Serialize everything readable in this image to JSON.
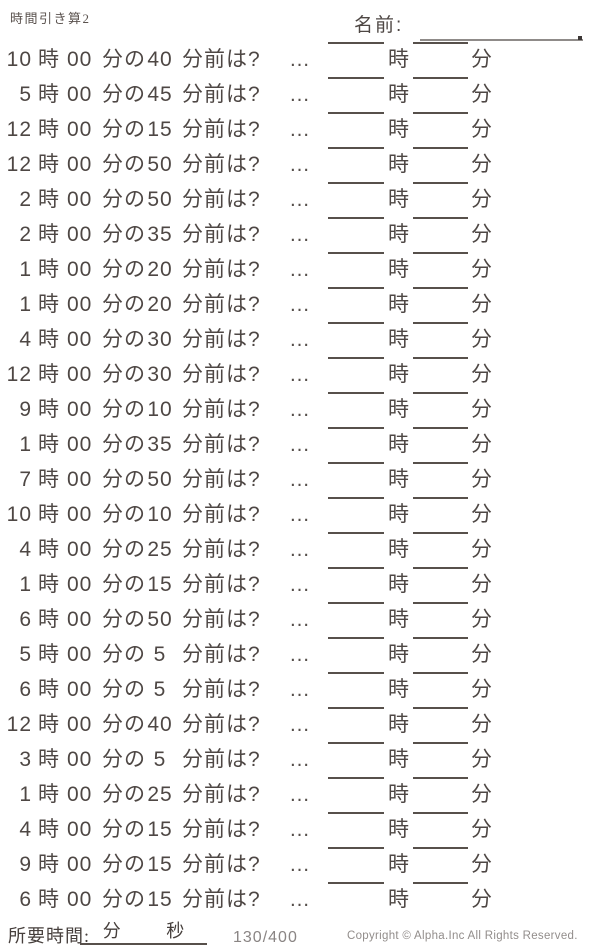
{
  "page": {
    "title": "時間引き算2",
    "name_label": "名前:",
    "colors": {
      "ink": "#4e4744",
      "rule_line": "#57504b",
      "muted_gray": "#8a8584"
    },
    "footer": {
      "time_label": "所要時間:",
      "minutes_label": "分",
      "seconds_label": "秒",
      "page_indicator": "130/400",
      "copyright": "Copyright ©  Alpha.Inc All Rights Reserved."
    }
  },
  "row_labels": {
    "hour_unit": "時",
    "base_minutes": "00",
    "of_label": "分の",
    "before_label": "分前は?",
    "ellipsis": "…",
    "answer_hour_unit": "時",
    "answer_minute_unit": "分"
  },
  "problems": [
    {
      "hour": "10",
      "minutes_before": "40"
    },
    {
      "hour": "5",
      "minutes_before": "45"
    },
    {
      "hour": "12",
      "minutes_before": "15"
    },
    {
      "hour": "12",
      "minutes_before": "50"
    },
    {
      "hour": "2",
      "minutes_before": "50"
    },
    {
      "hour": "2",
      "minutes_before": "35"
    },
    {
      "hour": "1",
      "minutes_before": "20"
    },
    {
      "hour": "1",
      "minutes_before": "20"
    },
    {
      "hour": "4",
      "minutes_before": "30"
    },
    {
      "hour": "12",
      "minutes_before": "30"
    },
    {
      "hour": "9",
      "minutes_before": "10"
    },
    {
      "hour": "1",
      "minutes_before": "35"
    },
    {
      "hour": "7",
      "minutes_before": "50"
    },
    {
      "hour": "10",
      "minutes_before": "10"
    },
    {
      "hour": "4",
      "minutes_before": "25"
    },
    {
      "hour": "1",
      "minutes_before": "15"
    },
    {
      "hour": "6",
      "minutes_before": "50"
    },
    {
      "hour": "5",
      "minutes_before": "5"
    },
    {
      "hour": "6",
      "minutes_before": "5"
    },
    {
      "hour": "12",
      "minutes_before": "40"
    },
    {
      "hour": "3",
      "minutes_before": "5"
    },
    {
      "hour": "1",
      "minutes_before": "25"
    },
    {
      "hour": "4",
      "minutes_before": "15"
    },
    {
      "hour": "9",
      "minutes_before": "15"
    },
    {
      "hour": "6",
      "minutes_before": "15"
    }
  ]
}
